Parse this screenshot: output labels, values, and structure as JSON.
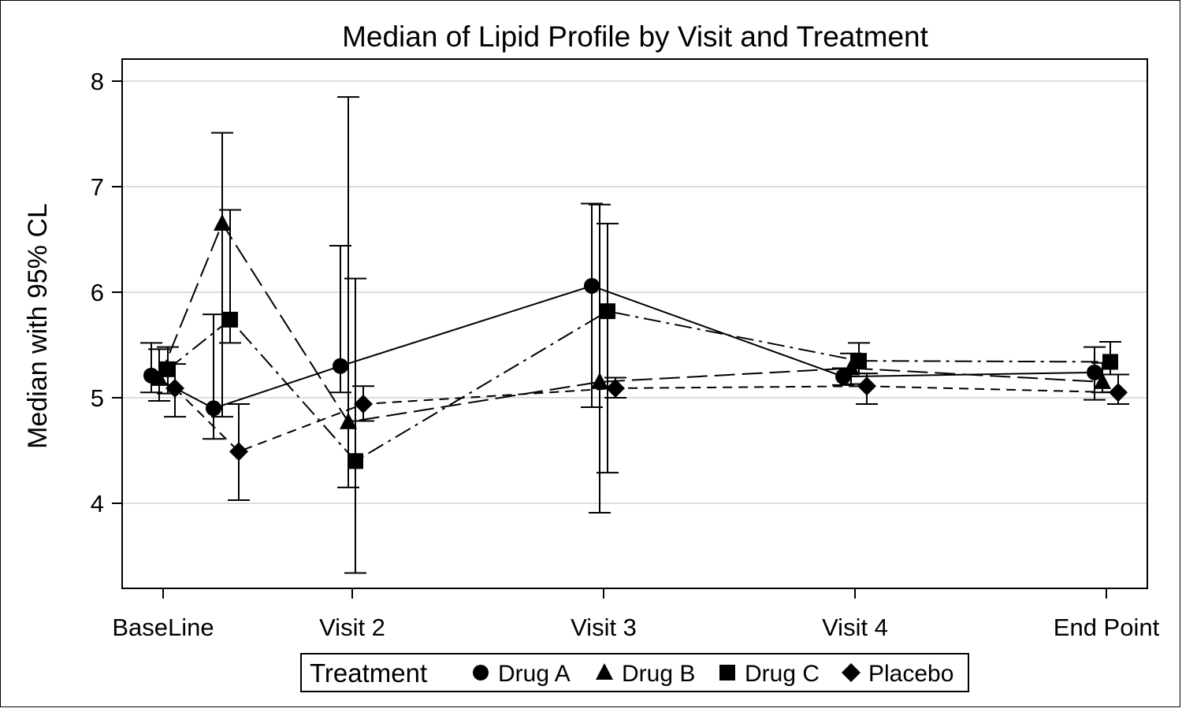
{
  "chart_data": {
    "type": "line",
    "title": "Median of Lipid Profile by Visit and Treatment",
    "xlabel": "",
    "ylabel": "Median with 95% CL",
    "ylim": [
      3.2,
      8.2
    ],
    "yticks": [
      4,
      5,
      6,
      7,
      8
    ],
    "grid": "horizontal",
    "x_categories": [
      "BaseLine",
      "Visit 2",
      "Visit 3",
      "Visit 4",
      "End Point"
    ],
    "legend": {
      "title": "Treatment",
      "placement": "bottom-center",
      "entries": [
        "Drug A",
        "Drug B",
        "Drug C",
        "Placebo"
      ]
    },
    "series": [
      {
        "name": "Drug A",
        "marker": "circle",
        "line": "solid",
        "points": [
          {
            "x": "BaseLine",
            "y": 5.21,
            "lower": 5.05,
            "upper": 5.52
          },
          {
            "x": "BaseLine",
            "y": 4.9,
            "lower": 4.61,
            "upper": 5.79
          },
          {
            "x": "Visit 2",
            "y": 5.3,
            "lower": 5.05,
            "upper": 6.44
          },
          {
            "x": "Visit 3",
            "y": 6.06,
            "lower": 4.91,
            "upper": 6.84
          },
          {
            "x": "Visit 4",
            "y": 5.2,
            "lower": 5.12,
            "upper": 5.28
          },
          {
            "x": "End Point",
            "y": 5.24,
            "lower": 4.98,
            "upper": 5.48
          }
        ]
      },
      {
        "name": "Drug B",
        "marker": "triangle",
        "line": "long-dash",
        "points": [
          {
            "x": "BaseLine",
            "y": 5.18,
            "lower": 4.97,
            "upper": 5.46
          },
          {
            "x": "BaseLine",
            "y": 6.65,
            "lower": 4.82,
            "upper": 7.51
          },
          {
            "x": "Visit 2",
            "y": 4.77,
            "lower": 4.15,
            "upper": 7.85
          },
          {
            "x": "Visit 3",
            "y": 5.15,
            "lower": 3.91,
            "upper": 6.83
          },
          {
            "x": "Visit 4",
            "y": 5.28,
            "lower": 5.13,
            "upper": 5.42
          },
          {
            "x": "End Point",
            "y": 5.15,
            "lower": 5.05,
            "upper": 5.33
          }
        ]
      },
      {
        "name": "Drug C",
        "marker": "square",
        "line": "dash-dot",
        "points": [
          {
            "x": "BaseLine",
            "y": 5.27,
            "lower": 5.04,
            "upper": 5.48
          },
          {
            "x": "BaseLine",
            "y": 5.74,
            "lower": 5.52,
            "upper": 6.78
          },
          {
            "x": "Visit 2",
            "y": 4.4,
            "lower": 3.34,
            "upper": 6.13
          },
          {
            "x": "Visit 3",
            "y": 5.82,
            "lower": 4.29,
            "upper": 6.65
          },
          {
            "x": "Visit 4",
            "y": 5.35,
            "lower": 5.23,
            "upper": 5.52
          },
          {
            "x": "End Point",
            "y": 5.34,
            "lower": 5.22,
            "upper": 5.53
          }
        ]
      },
      {
        "name": "Placebo",
        "marker": "diamond",
        "line": "dash",
        "points": [
          {
            "x": "BaseLine",
            "y": 5.09,
            "lower": 4.82,
            "upper": 5.32
          },
          {
            "x": "BaseLine",
            "y": 4.49,
            "lower": 4.03,
            "upper": 4.94
          },
          {
            "x": "Visit 2",
            "y": 4.94,
            "lower": 4.78,
            "upper": 5.11
          },
          {
            "x": "Visit 3",
            "y": 5.09,
            "lower": 5.0,
            "upper": 5.19
          },
          {
            "x": "Visit 4",
            "y": 5.11,
            "lower": 4.94,
            "upper": 5.23
          },
          {
            "x": "End Point",
            "y": 5.05,
            "lower": 4.94,
            "upper": 5.22
          }
        ]
      }
    ]
  }
}
